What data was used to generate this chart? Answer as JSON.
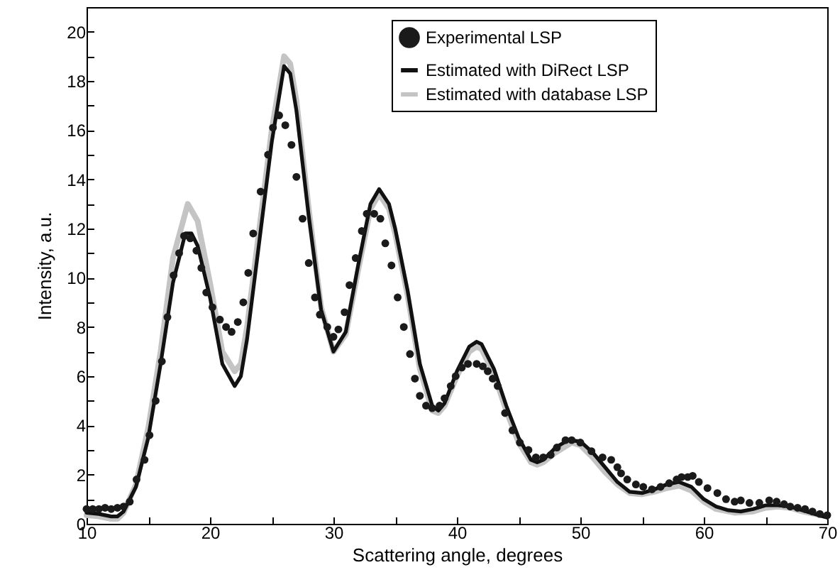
{
  "chart_data": {
    "type": "line",
    "xlabel": "Scattering angle, degrees",
    "ylabel": "Intensity, a.u.",
    "xlim": [
      10,
      70
    ],
    "xticks": [
      10,
      {
        "value": 15,
        "label": null
      },
      20,
      {
        "value": 25,
        "label": null
      },
      30,
      {
        "value": 35,
        "label": null
      },
      40,
      {
        "value": 45,
        "label": null
      },
      50,
      {
        "value": 55,
        "label": null
      },
      60,
      {
        "value": 65,
        "label": null
      },
      70
    ],
    "ylim": [
      0,
      21
    ],
    "yticks": [
      0,
      {
        "value": 1,
        "label": null
      },
      2,
      {
        "value": 3,
        "label": null
      },
      4,
      {
        "value": 5,
        "label": null
      },
      6,
      {
        "value": 7,
        "label": null
      },
      8,
      {
        "value": 9,
        "label": null
      },
      10,
      {
        "value": 11,
        "label": null
      },
      12,
      {
        "value": 13,
        "label": null
      },
      14,
      {
        "value": 15,
        "label": null
      },
      16,
      {
        "value": 17,
        "label": null
      },
      18,
      {
        "value": 19,
        "label": null
      },
      20,
      {
        "value": 21,
        "label": null
      }
    ],
    "legend": "top right",
    "grid": false,
    "series": [
      {
        "name": "Experimental LSP",
        "type": "scatter",
        "marker": "circle",
        "color": "#1a1a1a",
        "x": [
          10,
          10.5,
          11,
          11.5,
          12,
          12.5,
          13,
          13.5,
          14.05,
          14.7,
          15.1,
          15.6,
          16.1,
          16.55,
          17.05,
          17.5,
          17.9,
          18.4,
          18.9,
          19.3,
          19.7,
          20.2,
          20.8,
          21.3,
          21.75,
          22.25,
          22.7,
          23.1,
          23.5,
          24.1,
          24.7,
          25.1,
          25.6,
          26.1,
          26.6,
          27.0,
          27.5,
          28.0,
          28.5,
          28.9,
          29.5,
          30.0,
          30.4,
          30.9,
          31.3,
          31.8,
          32.3,
          32.7,
          33.3,
          33.8,
          34.2,
          34.7,
          35.2,
          35.7,
          36.2,
          36.6,
          37.0,
          37.5,
          38.0,
          38.6,
          39.0,
          39.5,
          39.9,
          40.4,
          40.9,
          41.6,
          42.1,
          42.5,
          42.9,
          43.3,
          43.9,
          44.5,
          45.1,
          45.8,
          46.4,
          47.0,
          47.6,
          48.1,
          48.8,
          49.3,
          50.0,
          50.9,
          51.8,
          52.5,
          53.0,
          53.3,
          53.8,
          54.5,
          55.1,
          55.8,
          56.5,
          57.2,
          57.8,
          58.2,
          58.7,
          59.1,
          59.6,
          60.3,
          61.1,
          61.8,
          62.5,
          63.0,
          63.7,
          64.5,
          65.3,
          65.9,
          66.5,
          67.0,
          67.6,
          68.2,
          68.8,
          69.4,
          70
        ],
        "values": [
          0.6,
          0.6,
          0.6,
          0.65,
          0.6,
          0.65,
          0.7,
          0.9,
          1.8,
          2.6,
          3.6,
          5.0,
          6.6,
          8.4,
          10.1,
          11.0,
          11.7,
          11.6,
          11.1,
          10.4,
          9.4,
          8.8,
          8.3,
          8.0,
          7.8,
          8.2,
          9.0,
          10.2,
          11.8,
          13.5,
          15.0,
          16.1,
          16.6,
          16.2,
          15.4,
          14.1,
          12.4,
          10.6,
          9.2,
          8.5,
          8.0,
          7.6,
          7.9,
          8.6,
          9.7,
          10.8,
          11.9,
          12.6,
          12.6,
          12.4,
          11.4,
          10.5,
          9.2,
          8.0,
          6.9,
          5.9,
          5.2,
          4.8,
          4.7,
          4.8,
          5.1,
          5.6,
          6.0,
          6.35,
          6.5,
          6.5,
          6.4,
          6.2,
          5.9,
          5.6,
          4.5,
          3.8,
          3.3,
          3.0,
          2.7,
          2.7,
          2.8,
          3.1,
          3.4,
          3.4,
          3.3,
          2.95,
          2.7,
          2.6,
          2.3,
          2.05,
          1.8,
          1.6,
          1.5,
          1.4,
          1.5,
          1.65,
          1.8,
          1.9,
          1.9,
          1.95,
          1.7,
          1.45,
          1.25,
          1.0,
          0.9,
          0.95,
          0.85,
          0.85,
          0.95,
          0.9,
          0.8,
          0.7,
          0.65,
          0.6,
          0.5,
          0.4,
          0.35
        ]
      },
      {
        "name": "Estimated with DiRect LSP",
        "type": "line",
        "color": "#111111",
        "x": [
          10,
          11,
          12,
          12.5,
          13,
          14,
          15,
          16,
          17,
          18,
          18.5,
          19,
          20,
          21,
          22,
          22.5,
          23,
          24,
          25,
          26,
          26.5,
          27,
          28,
          29,
          30,
          31,
          32,
          33,
          33.7,
          34.5,
          35,
          36,
          37,
          38,
          38.5,
          39,
          40,
          41,
          41.6,
          42,
          43,
          44,
          45,
          46,
          46.5,
          47,
          48,
          49,
          50,
          51,
          52,
          53,
          54,
          55,
          56,
          57,
          58,
          59,
          60,
          61,
          62,
          63,
          64,
          65,
          66,
          67,
          68,
          69,
          70
        ],
        "values": [
          0.45,
          0.4,
          0.3,
          0.3,
          0.5,
          1.5,
          3.5,
          6.5,
          9.8,
          11.8,
          11.8,
          11.3,
          9.2,
          6.5,
          5.6,
          6.0,
          7.5,
          11.5,
          15.5,
          18.6,
          18.3,
          16.8,
          12.5,
          8.7,
          7.0,
          7.8,
          10.5,
          13.0,
          13.6,
          13.0,
          12.0,
          9.5,
          6.5,
          4.8,
          4.6,
          4.9,
          6.2,
          7.2,
          7.4,
          7.3,
          6.3,
          4.8,
          3.5,
          2.6,
          2.5,
          2.6,
          3.1,
          3.4,
          3.35,
          2.9,
          2.3,
          1.7,
          1.3,
          1.25,
          1.4,
          1.6,
          1.7,
          1.5,
          1.0,
          0.7,
          0.55,
          0.5,
          0.6,
          0.75,
          0.75,
          0.7,
          0.55,
          0.4,
          0.25
        ]
      },
      {
        "name": "Estimated with database LSP",
        "type": "line",
        "color": "#c4c4c4",
        "x": [
          10,
          11,
          12,
          12.5,
          13,
          14,
          15,
          16,
          17,
          18.2,
          19,
          20,
          21,
          22,
          22.5,
          23,
          24,
          25,
          26,
          26.5,
          27,
          28,
          29,
          30,
          31,
          32,
          33,
          33.7,
          34.5,
          35,
          36,
          37,
          38,
          38.5,
          39,
          40,
          41,
          41.6,
          42,
          43,
          44,
          45,
          46,
          46.5,
          47,
          48,
          49.3,
          50,
          51,
          52,
          53,
          54,
          55,
          56,
          57,
          58,
          59,
          60,
          61,
          62.5,
          64,
          65,
          66,
          67,
          68,
          69,
          70
        ],
        "values": [
          0.35,
          0.3,
          0.2,
          0.2,
          0.45,
          1.6,
          3.9,
          7.0,
          10.8,
          13.0,
          12.3,
          9.8,
          7.0,
          6.2,
          6.5,
          8.0,
          12.0,
          16.0,
          19.0,
          18.7,
          17.2,
          12.8,
          8.8,
          7.0,
          7.7,
          10.3,
          12.8,
          13.4,
          12.8,
          11.8,
          9.3,
          6.3,
          4.6,
          4.5,
          4.8,
          6.0,
          7.0,
          7.2,
          7.1,
          6.1,
          4.6,
          3.3,
          2.5,
          2.4,
          2.5,
          2.9,
          3.3,
          3.2,
          2.7,
          2.1,
          1.6,
          1.25,
          1.2,
          1.3,
          1.45,
          1.55,
          1.35,
          0.9,
          0.6,
          0.45,
          0.5,
          0.65,
          0.7,
          0.65,
          0.5,
          0.4,
          0.3
        ]
      }
    ]
  }
}
